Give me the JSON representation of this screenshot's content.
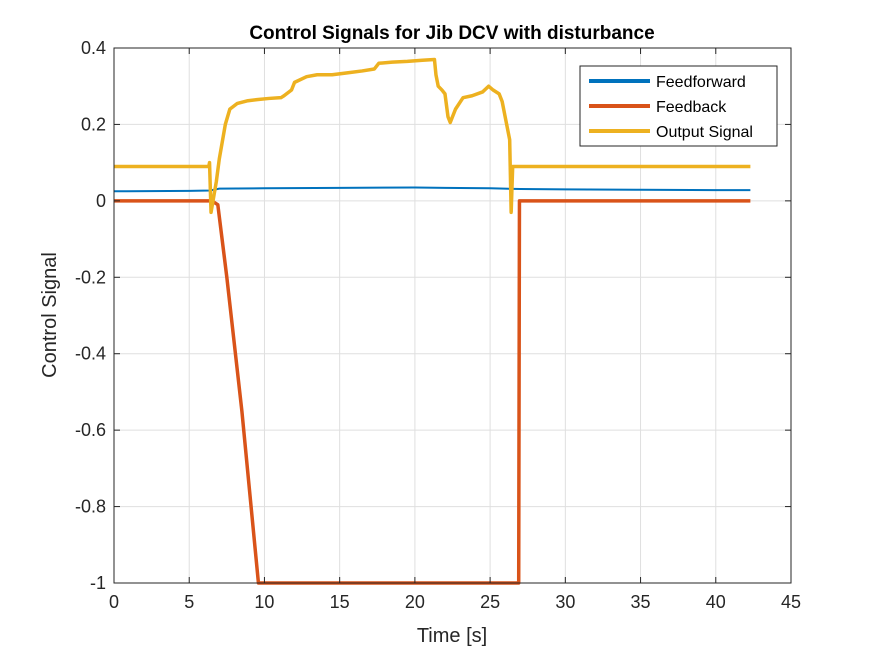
{
  "chart_data": {
    "type": "line",
    "title": "Control Signals for Jib DCV with disturbance",
    "xlabel": "Time [s]",
    "ylabel": "Control Signal",
    "xlim": [
      0,
      45
    ],
    "ylim": [
      -1,
      0.4
    ],
    "xticks": [
      0,
      5,
      10,
      15,
      20,
      25,
      30,
      35,
      40,
      45
    ],
    "yticks": [
      -1,
      -0.8,
      -0.6,
      -0.4,
      -0.2,
      0,
      0.2,
      0.4
    ],
    "xtick_labels": [
      "0",
      "5",
      "10",
      "15",
      "20",
      "25",
      "30",
      "35",
      "40",
      "45"
    ],
    "ytick_labels": [
      "-1",
      "-0.8",
      "-0.6",
      "-0.4",
      "-0.2",
      "0",
      "0.2",
      "0.4"
    ],
    "grid": true,
    "legend_position": "top-right",
    "series": [
      {
        "name": "Feedforward",
        "color": "#0072BD",
        "x": [
          0,
          5,
          6.4,
          7,
          10,
          15,
          20,
          22,
          25,
          27,
          30,
          35,
          40,
          42.3
        ],
        "y": [
          0.025,
          0.026,
          0.027,
          0.032,
          0.033,
          0.034,
          0.035,
          0.034,
          0.033,
          0.031,
          0.03,
          0.029,
          0.028,
          0.028
        ]
      },
      {
        "name": "Feedback",
        "color": "#D95319",
        "x": [
          0,
          6.5,
          6.9,
          7.5,
          8.5,
          9.6,
          26.9,
          26.95,
          42.3
        ],
        "y": [
          0,
          0,
          -0.01,
          -0.2,
          -0.55,
          -1,
          -1,
          0,
          0
        ]
      },
      {
        "name": "Output Signal",
        "color": "#EDB120",
        "x": [
          0,
          6.3,
          6.35,
          6.45,
          6.8,
          7.0,
          7.4,
          7.7,
          8.2,
          8.9,
          9.5,
          10.3,
          11.1,
          11.3,
          11.8,
          12.0,
          12.8,
          13.5,
          14.5,
          15.5,
          16.5,
          17.3,
          17.6,
          18.5,
          19.5,
          20.5,
          21.3,
          21.4,
          21.55,
          21.8,
          22.0,
          22.2,
          22.35,
          22.7,
          23.2,
          23.8,
          24.5,
          24.9,
          25.2,
          25.6,
          25.8,
          26.0,
          26.3,
          26.4,
          26.5,
          26.7,
          27.5,
          30,
          35,
          40,
          42.3
        ],
        "y": [
          0.09,
          0.09,
          0.1,
          -0.03,
          0.05,
          0.11,
          0.2,
          0.24,
          0.255,
          0.262,
          0.265,
          0.268,
          0.27,
          0.275,
          0.29,
          0.31,
          0.325,
          0.33,
          0.33,
          0.335,
          0.34,
          0.345,
          0.36,
          0.363,
          0.365,
          0.368,
          0.37,
          0.33,
          0.3,
          0.29,
          0.28,
          0.22,
          0.205,
          0.24,
          0.27,
          0.275,
          0.285,
          0.3,
          0.29,
          0.28,
          0.26,
          0.22,
          0.16,
          -0.03,
          0.09,
          0.09,
          0.09,
          0.09,
          0.09,
          0.09,
          0.09
        ]
      }
    ]
  }
}
